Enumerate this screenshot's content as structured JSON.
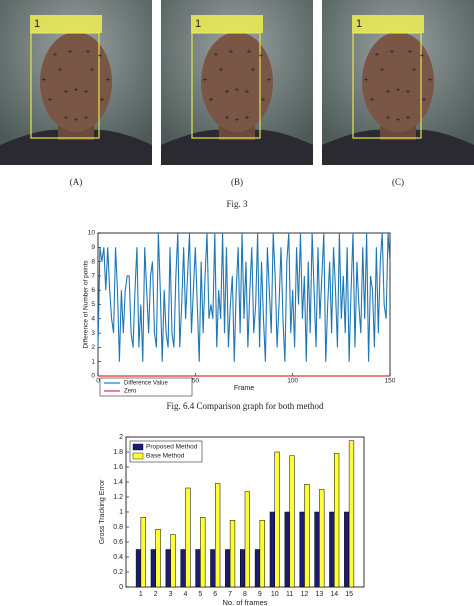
{
  "figure": {
    "photos": [
      {
        "box_label": "1",
        "caption": "(A)"
      },
      {
        "box_label": "1",
        "caption": "(B)"
      },
      {
        "box_label": "1",
        "caption": "(C)"
      }
    ],
    "caption": "Fig. 3"
  },
  "chart_data": [
    {
      "type": "line",
      "xlabel": "Frame",
      "ylabel": "Difference of Number of points",
      "x": [
        0,
        1,
        2,
        3,
        4,
        5,
        6,
        7,
        8,
        9,
        10,
        11,
        12,
        13,
        14,
        15,
        16,
        17,
        18,
        19,
        20,
        21,
        22,
        23,
        24,
        25,
        26,
        27,
        28,
        29,
        30,
        31,
        32,
        33,
        34,
        35,
        36,
        37,
        38,
        39,
        40,
        41,
        42,
        43,
        44,
        45,
        46,
        47,
        48,
        49,
        50,
        51,
        52,
        53,
        54,
        55,
        56,
        57,
        58,
        59,
        60,
        61,
        62,
        63,
        64,
        65,
        66,
        67,
        68,
        69,
        70,
        71,
        72,
        73,
        74,
        75,
        76,
        77,
        78,
        79,
        80,
        81,
        82,
        83,
        84,
        85,
        86,
        87,
        88,
        89,
        90,
        91,
        92,
        93,
        94,
        95,
        96,
        97,
        98,
        99,
        100,
        101,
        102,
        103,
        104,
        105,
        106,
        107,
        108,
        109,
        110,
        111,
        112,
        113,
        114,
        115,
        116,
        117,
        118,
        119,
        120,
        121,
        122,
        123,
        124,
        125,
        126,
        127,
        128,
        129,
        130,
        131,
        132,
        133,
        134,
        135,
        136,
        137,
        138,
        139,
        140,
        141,
        142,
        143,
        144,
        145,
        146,
        147,
        148,
        149,
        150
      ],
      "series": [
        {
          "name": "Difference Value",
          "color": "#1f77b4",
          "values": [
            2,
            9,
            8,
            9,
            6,
            9,
            6,
            4,
            3,
            9,
            6,
            1,
            6,
            3,
            6,
            7,
            7,
            3,
            2,
            6,
            9,
            2,
            5,
            1,
            9,
            6,
            3,
            7,
            8,
            3,
            2,
            10,
            6,
            1,
            6,
            3,
            2,
            9,
            3,
            2,
            7,
            10,
            2,
            5,
            9,
            4,
            7,
            10,
            3,
            6,
            9,
            5,
            1,
            8,
            3,
            7,
            10,
            4,
            5,
            4,
            10,
            2,
            6,
            4,
            10,
            3,
            9,
            2,
            5,
            7,
            1,
            6,
            9,
            3,
            10,
            4,
            8,
            2,
            6,
            9,
            3,
            5,
            10,
            2,
            8,
            4,
            1,
            9,
            6,
            3,
            10,
            7,
            2,
            5,
            9,
            4,
            1,
            8,
            10,
            3,
            6,
            2,
            9,
            5,
            10,
            4,
            7,
            1,
            8,
            3,
            10,
            6,
            2,
            9,
            4,
            7,
            10,
            1,
            5,
            8,
            3,
            9,
            6,
            2,
            10,
            4,
            7,
            3,
            9,
            1,
            6,
            10,
            2,
            8,
            5,
            3,
            9,
            4,
            10,
            1,
            7,
            6,
            2,
            9,
            3,
            8,
            10,
            5,
            4,
            10,
            8
          ]
        }
      ],
      "reference_lines": [
        {
          "name": "Zero",
          "color": "#e03030",
          "value": 0
        }
      ],
      "xlim": [
        0,
        150
      ],
      "xticks": [
        0,
        50,
        100,
        150
      ],
      "ylim": [
        0,
        10
      ],
      "yticks": [
        0,
        1,
        2,
        3,
        4,
        5,
        6,
        7,
        8,
        9,
        10
      ],
      "legend": "lower-left"
    },
    {
      "type": "bar",
      "xlabel": "No. of frames",
      "ylabel": "Gross Tracking Error",
      "categories": [
        "1",
        "2",
        "3",
        "4",
        "5",
        "6",
        "7",
        "8",
        "9",
        "10",
        "11",
        "12",
        "13",
        "14",
        "15"
      ],
      "series": [
        {
          "name": "Proposed Method",
          "color": "#1c1c72",
          "values": [
            0.5,
            0.5,
            0.5,
            0.5,
            0.5,
            0.5,
            0.5,
            0.5,
            0.5,
            1,
            1,
            1,
            1,
            1,
            1
          ]
        },
        {
          "name": "Base Method",
          "color": "#ffff33",
          "values": [
            0.93,
            0.77,
            0.7,
            1.32,
            0.93,
            1.38,
            0.89,
            1.27,
            0.89,
            1.8,
            1.75,
            1.37,
            1.3,
            1.78,
            1.95
          ]
        }
      ],
      "ylim": [
        0,
        2
      ],
      "yticks": [
        0,
        0.2,
        0.4,
        0.6,
        0.8,
        1,
        1.2,
        1.4,
        1.6,
        1.8,
        2
      ],
      "legend": "upper-left"
    }
  ],
  "captions": [
    "Fig. 6.4 Comparison graph for both method"
  ]
}
